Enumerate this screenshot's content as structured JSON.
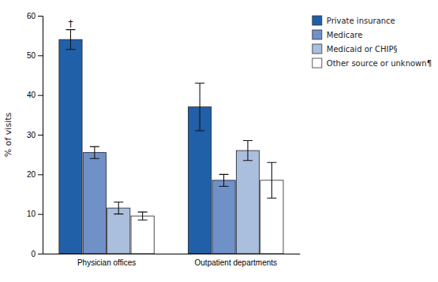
{
  "chart_data": {
    "type": "bar",
    "ylabel": "% of visits",
    "categories": [
      "Physician offices",
      "Outpatient departments"
    ],
    "series": [
      {
        "name": "Private insurance",
        "color": "#2060a8",
        "values": [
          54.0,
          37.0
        ],
        "errors": [
          2.5,
          6.0
        ]
      },
      {
        "name": "Medicare",
        "color": "#7090c8",
        "values": [
          25.5,
          18.5
        ],
        "errors": [
          1.5,
          1.5
        ]
      },
      {
        "name": "Medicaid or CHIP§",
        "color": "#aabedd",
        "values": [
          11.5,
          26.0
        ],
        "errors": [
          1.5,
          2.5
        ]
      },
      {
        "name": "Other source or unknown¶",
        "color": "#ffffff",
        "values": [
          9.5,
          18.5
        ],
        "errors": [
          1.0,
          4.5
        ]
      }
    ],
    "annotation": "†",
    "ylim": [
      0,
      60
    ],
    "yticks": [
      0,
      10,
      20,
      30,
      40,
      50,
      60
    ],
    "grid": false,
    "legend": "upper right"
  }
}
